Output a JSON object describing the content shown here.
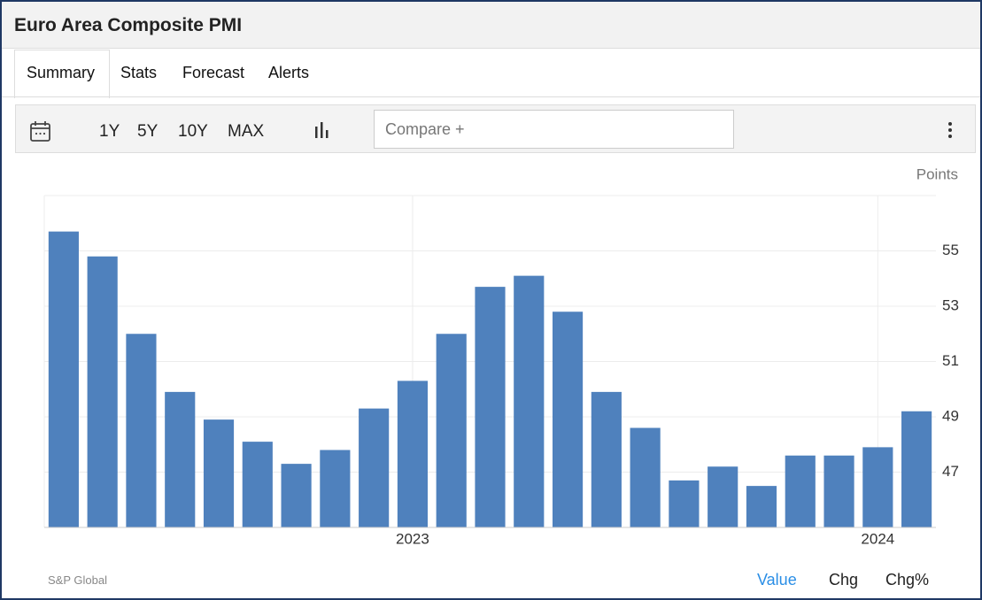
{
  "header": {
    "title": "Euro Area Composite PMI"
  },
  "tabs": [
    "Summary",
    "Stats",
    "Forecast",
    "Alerts"
  ],
  "toolbar": {
    "ranges": [
      "1Y",
      "5Y",
      "10Y",
      "MAX"
    ],
    "compare": "Compare +"
  },
  "chart_data": {
    "type": "bar",
    "unit": "Points",
    "color": "#4f81bd",
    "categories": [
      null,
      null,
      null,
      null,
      null,
      null,
      null,
      null,
      null,
      "2023",
      null,
      null,
      null,
      null,
      null,
      null,
      null,
      null,
      null,
      null,
      null,
      "2024",
      null
    ],
    "values": [
      55.7,
      54.8,
      52.0,
      49.9,
      48.9,
      48.1,
      47.3,
      47.8,
      49.3,
      50.3,
      52.0,
      53.7,
      54.1,
      52.8,
      49.9,
      48.6,
      46.7,
      47.2,
      46.5,
      47.6,
      47.6,
      47.9,
      49.2
    ],
    "ylim": [
      45,
      57
    ],
    "yticks": [
      47,
      49,
      51,
      53,
      55
    ],
    "grid": true
  },
  "footer": {
    "source": "S&P Global",
    "modes": [
      "Value",
      "Chg",
      "Chg%"
    ]
  }
}
